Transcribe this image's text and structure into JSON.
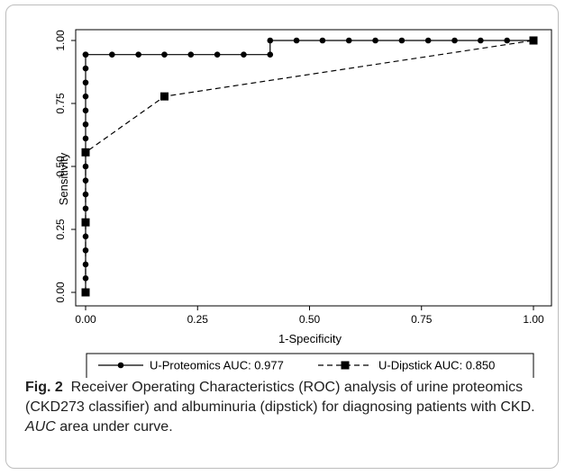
{
  "chart_data": {
    "type": "line",
    "title": "",
    "xlabel": "1-Specificity",
    "ylabel": "Sensitivity",
    "xlim": [
      0,
      1
    ],
    "ylim": [
      0,
      1
    ],
    "xticks": [
      "0.00",
      "0.25",
      "0.50",
      "0.75",
      "1.00"
    ],
    "yticks": [
      "0.00",
      "0.25",
      "0.50",
      "0.75",
      "1.00"
    ],
    "grid": false,
    "legend_position": "bottom",
    "series": [
      {
        "name": "U-Proteomics AUC: 0.977",
        "marker": "circle",
        "line_style": "solid",
        "color": "#000000",
        "x": [
          0,
          0,
          0,
          0,
          0,
          0,
          0,
          0,
          0,
          0,
          0,
          0,
          0,
          0,
          0,
          0,
          0,
          0,
          0,
          0.059,
          0.118,
          0.176,
          0.235,
          0.294,
          0.353,
          0.412,
          0.412,
          0.471,
          0.529,
          0.588,
          0.647,
          0.706,
          0.765,
          0.824,
          0.882,
          0.941,
          1.0
        ],
        "y": [
          0,
          0.056,
          0.111,
          0.167,
          0.222,
          0.278,
          0.333,
          0.389,
          0.444,
          0.5,
          0.556,
          0.611,
          0.667,
          0.722,
          0.778,
          0.833,
          0.889,
          0.944,
          0.944,
          0.944,
          0.944,
          0.944,
          0.944,
          0.944,
          0.944,
          0.944,
          1.0,
          1.0,
          1.0,
          1.0,
          1.0,
          1.0,
          1.0,
          1.0,
          1.0,
          1.0,
          1.0
        ]
      },
      {
        "name": "U-Dipstick AUC: 0.850",
        "marker": "square",
        "line_style": "dashed",
        "color": "#000000",
        "x": [
          0,
          0,
          0,
          0.176,
          1.0
        ],
        "y": [
          0,
          0.278,
          0.556,
          0.778,
          1.0
        ]
      }
    ]
  },
  "caption": {
    "label": "Fig. 2",
    "text_before": "Receiver Operating Characteristics (ROC) analysis of urine proteomics (CKD273 classifier) and albuminuria (dipstick) for diagnosing patients with CKD.",
    "abbr": "AUC",
    "text_after": "area under curve."
  }
}
